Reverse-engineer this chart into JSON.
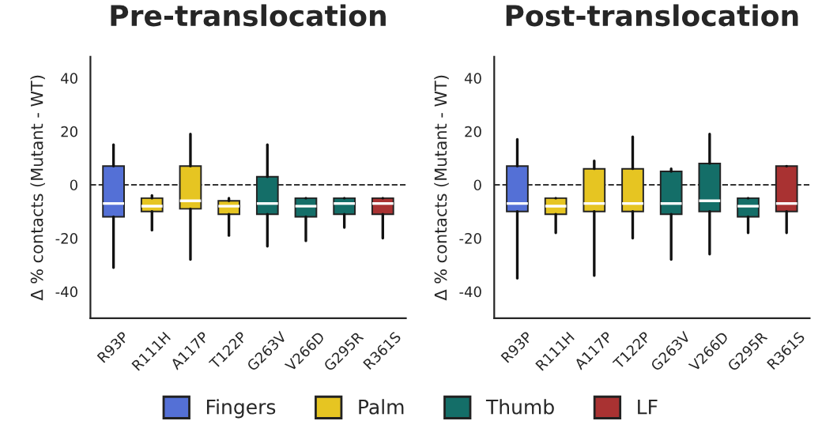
{
  "chart_data": [
    {
      "type": "box",
      "title": "Pre-translocation",
      "ylabel": "Δ % contacts (Mutant - WT)",
      "categories": [
        "R93P",
        "R111H",
        "A117P",
        "T122P",
        "G263V",
        "V266D",
        "G295R",
        "R361S"
      ],
      "ylim": [
        -50,
        48
      ],
      "yticks": [
        -40,
        -20,
        0,
        20,
        40
      ],
      "ref_lines": [
        {
          "axis": "y",
          "value": 0,
          "line_style": "dashed",
          "color": "#333333"
        }
      ],
      "legend": "bottom",
      "series": [
        {
          "name": "Fingers",
          "color": "#5470d6",
          "boxes": [
            {
              "low": -31,
              "q1": -12,
              "median": -7,
              "q3": 7,
              "high": 15
            },
            null,
            null,
            null,
            null,
            null,
            null,
            null
          ]
        },
        {
          "name": "Palm",
          "color": "#e6c522",
          "boxes": [
            null,
            {
              "low": -17,
              "q1": -10,
              "median": -8,
              "q3": -5,
              "high": -4
            },
            {
              "low": -28,
              "q1": -9,
              "median": -6,
              "q3": 7,
              "high": 19
            },
            {
              "low": -19,
              "q1": -11,
              "median": -8,
              "q3": -6,
              "high": -5
            },
            null,
            null,
            null,
            null
          ]
        },
        {
          "name": "Thumb",
          "color": "#146e68",
          "boxes": [
            null,
            null,
            null,
            null,
            {
              "low": -23,
              "q1": -11,
              "median": -7,
              "q3": 3,
              "high": 15
            },
            {
              "low": -21,
              "q1": -12,
              "median": -8,
              "q3": -5,
              "high": -5
            },
            {
              "low": -16,
              "q1": -11,
              "median": -7,
              "q3": -5,
              "high": -5
            },
            null
          ]
        },
        {
          "name": "LF",
          "color": "#a93232",
          "boxes": [
            null,
            null,
            null,
            null,
            null,
            null,
            null,
            {
              "low": -20,
              "q1": -11,
              "median": -7,
              "q3": -5,
              "high": -5
            }
          ]
        }
      ]
    },
    {
      "type": "box",
      "title": "Post-translocation",
      "ylabel": "Δ % contacts (Mutant - WT)",
      "categories": [
        "R93P",
        "R111H",
        "A117P",
        "T122P",
        "G263V",
        "V266D",
        "G295R",
        "R361S"
      ],
      "ylim": [
        -50,
        48
      ],
      "yticks": [
        -40,
        -20,
        0,
        20,
        40
      ],
      "ref_lines": [
        {
          "axis": "y",
          "value": 0,
          "line_style": "dashed",
          "color": "#333333"
        }
      ],
      "series": [
        {
          "color": "#5470d6",
          "boxes": [
            {
              "low": -35,
              "q1": -10,
              "median": -7,
              "q3": 7,
              "high": 17
            },
            null,
            null,
            null,
            null,
            null,
            null,
            null
          ]
        },
        {
          "color": "#e6c522",
          "boxes": [
            null,
            {
              "low": -18,
              "q1": -11,
              "median": -8,
              "q3": -5,
              "high": -5
            },
            {
              "low": -34,
              "q1": -10,
              "median": -7,
              "q3": 6,
              "high": 9
            },
            {
              "low": -20,
              "q1": -10,
              "median": -7,
              "q3": 6,
              "high": 18
            },
            null,
            null,
            null,
            null
          ]
        },
        {
          "color": "#146e68",
          "boxes": [
            null,
            null,
            null,
            null,
            {
              "low": -28,
              "q1": -11,
              "median": -7,
              "q3": 5,
              "high": 6
            },
            {
              "low": -26,
              "q1": -10,
              "median": -6,
              "q3": 8,
              "high": 19
            },
            {
              "low": -18,
              "q1": -12,
              "median": -8,
              "q3": -5,
              "high": -5
            },
            null
          ]
        },
        {
          "color": "#a93232",
          "boxes": [
            null,
            null,
            null,
            null,
            null,
            null,
            null,
            {
              "low": -18,
              "q1": -10,
              "median": -7,
              "q3": 7,
              "high": 7
            }
          ]
        }
      ]
    }
  ]
}
